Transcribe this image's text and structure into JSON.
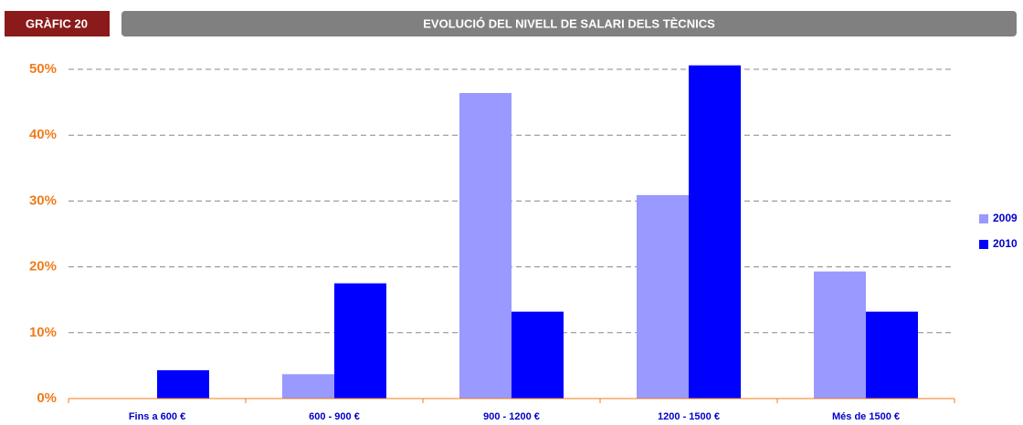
{
  "badge": "GRÀFIC 20",
  "chart_data": {
    "type": "bar",
    "title": "EVOLUCIÓ DEL NIVELL DE SALARI DELS TÈCNICS",
    "categories": [
      "Fins a 600 €",
      "600 - 900 €",
      "900 - 1200 €",
      "1200 - 1500 €",
      "Més de 1500 €"
    ],
    "series": [
      {
        "name": "2009",
        "color": "#9999ff",
        "values": [
          0,
          3.7,
          46.4,
          30.9,
          19.3
        ]
      },
      {
        "name": "2010",
        "color": "#0000ff",
        "values": [
          4.3,
          17.5,
          13.2,
          50.6,
          13.2
        ]
      }
    ],
    "ylim": [
      0,
      50
    ],
    "yticks": [
      {
        "value": 0,
        "label": "0%"
      },
      {
        "value": 10,
        "label": "10%"
      },
      {
        "value": 20,
        "label": "20%"
      },
      {
        "value": 30,
        "label": "30%"
      },
      {
        "value": 40,
        "label": "40%"
      },
      {
        "value": 50,
        "label": "50%"
      }
    ],
    "grid": true,
    "legend": "right"
  }
}
